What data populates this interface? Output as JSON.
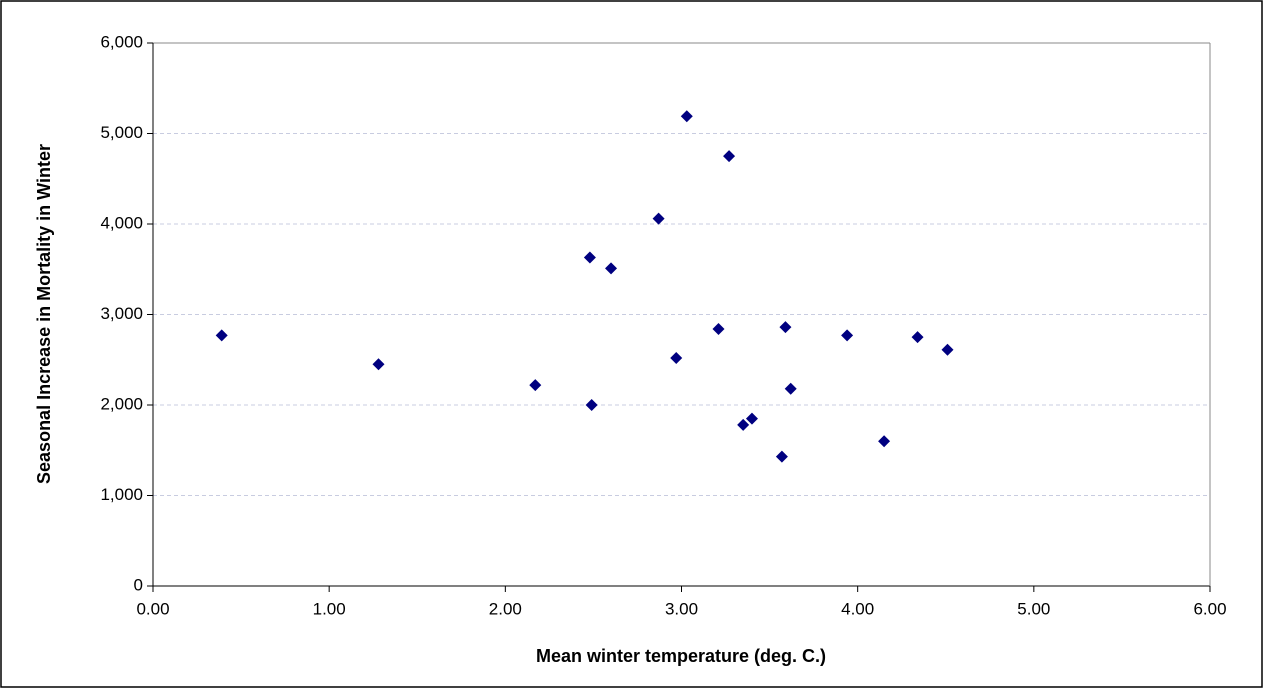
{
  "chart_data": {
    "type": "scatter",
    "x_label": "Mean winter temperature (deg. C.)",
    "y_label": "Seasonal Increase in Mortality in Winter",
    "series": [
      {
        "color": "#000080",
        "x": [
          0.39,
          1.28,
          2.17,
          2.49,
          2.48,
          2.6,
          2.87,
          2.97,
          3.03,
          3.21,
          3.27,
          3.35,
          3.4,
          3.57,
          3.59,
          3.62,
          3.94,
          4.15,
          4.34,
          4.51
        ],
        "values": [
          2770,
          2450,
          2220,
          2000,
          3630,
          3510,
          4060,
          2520,
          5190,
          2840,
          4750,
          1780,
          1850,
          1430,
          2860,
          2180,
          2770,
          1600,
          2750,
          2610
        ]
      }
    ],
    "xlim": [
      0,
      6
    ],
    "ylim": [
      0,
      6000
    ],
    "xticks": [
      {
        "value": 0,
        "label": "0.00"
      },
      {
        "value": 1,
        "label": "1.00"
      },
      {
        "value": 2,
        "label": "2.00"
      },
      {
        "value": 3,
        "label": "3.00"
      },
      {
        "value": 4,
        "label": "4.00"
      },
      {
        "value": 5,
        "label": "5.00"
      },
      {
        "value": 6,
        "label": "6.00"
      }
    ],
    "yticks": [
      0,
      {
        "value": 1000,
        "label": "1,000"
      },
      {
        "value": 2000,
        "label": "2,000"
      },
      {
        "value": 3000,
        "label": "3,000"
      },
      {
        "value": 4000,
        "label": "4,000"
      },
      {
        "value": 5000,
        "label": "5,000"
      },
      {
        "value": 6000,
        "label": "6,000"
      }
    ],
    "grid": true
  }
}
